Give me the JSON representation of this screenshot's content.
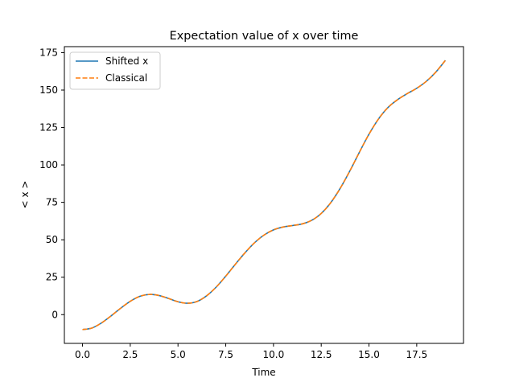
{
  "chart_data": {
    "type": "line",
    "title": "Expectation value of x over time",
    "xlabel": "Time",
    "ylabel": "< x >",
    "xlim": [
      -0.95,
      19.95
    ],
    "ylim": [
      -19.2,
      179.0
    ],
    "xticks": [
      0.0,
      2.5,
      5.0,
      7.5,
      10.0,
      12.5,
      15.0,
      17.5
    ],
    "xtick_labels": [
      "0.0",
      "2.5",
      "5.0",
      "7.5",
      "10.0",
      "12.5",
      "15.0",
      "17.5"
    ],
    "yticks": [
      0,
      25,
      50,
      75,
      100,
      125,
      150,
      175
    ],
    "ytick_labels": [
      "0",
      "25",
      "50",
      "75",
      "100",
      "125",
      "150",
      "175"
    ],
    "grid": false,
    "legend_position": "top-left",
    "x": [
      0,
      0.5,
      1,
      1.5,
      2,
      2.5,
      3,
      3.5,
      4,
      4.5,
      5,
      5.5,
      6,
      6.5,
      7,
      7.5,
      8,
      8.5,
      9,
      9.5,
      10,
      10.5,
      11,
      11.5,
      12,
      12.5,
      13,
      13.5,
      14,
      14.5,
      15,
      15.5,
      16,
      16.5,
      17,
      17.5,
      18,
      18.5,
      19
    ],
    "series": [
      {
        "name": "Shifted x",
        "color": "#1f77b4",
        "style": "solid",
        "values": [
          -10.0,
          -8.9,
          -5.5,
          -0.8,
          4.3,
          8.9,
          12.2,
          13.5,
          12.8,
          10.8,
          8.6,
          7.6,
          8.8,
          12.6,
          18.4,
          25.7,
          33.6,
          41.2,
          47.9,
          53.1,
          56.6,
          58.5,
          59.5,
          60.6,
          63.0,
          67.6,
          74.8,
          84.5,
          96.0,
          108.5,
          120.5,
          130.7,
          138.4,
          143.6,
          147.6,
          151.2,
          155.8,
          162.0,
          169.8
        ]
      },
      {
        "name": "Classical",
        "color": "#ff7f0e",
        "style": "dashed",
        "values": [
          -10.0,
          -8.9,
          -5.5,
          -0.8,
          4.3,
          8.9,
          12.2,
          13.5,
          12.8,
          10.8,
          8.6,
          7.6,
          8.8,
          12.6,
          18.4,
          25.7,
          33.6,
          41.2,
          47.9,
          53.1,
          56.6,
          58.5,
          59.5,
          60.6,
          63.0,
          67.6,
          74.8,
          84.5,
          96.0,
          108.5,
          120.5,
          130.7,
          138.4,
          143.6,
          147.6,
          151.2,
          155.8,
          162.0,
          169.8
        ]
      }
    ]
  }
}
